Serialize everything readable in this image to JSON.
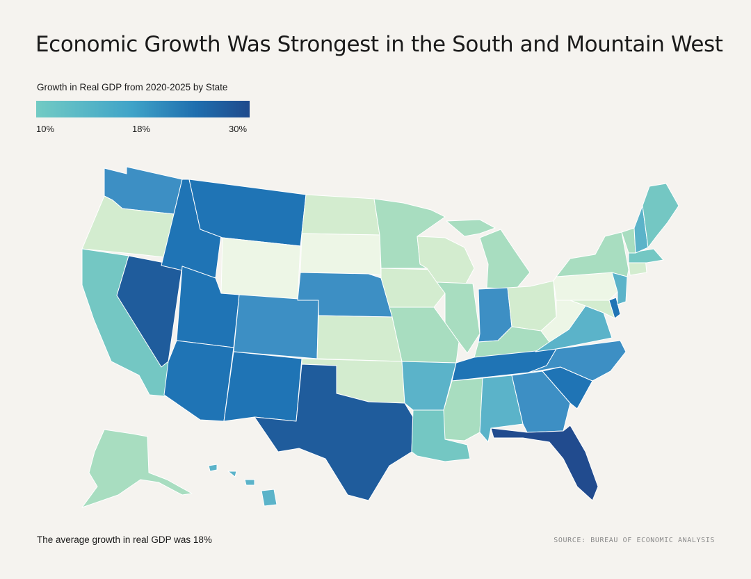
{
  "title": "Economic Growth Was Strongest in the South and Mountain West",
  "legend": {
    "title": "Growth in Real GDP from 2020-2025 by State",
    "ticks": [
      "10%",
      "18%",
      "30%"
    ],
    "colors": [
      "#72cbc4",
      "#3fa3c8",
      "#1f6eae",
      "#1f4a8c"
    ]
  },
  "footnote": "The average growth in real GDP was 18%",
  "source": "SOURCE: BUREAU OF ECONOMIC ANALYSIS",
  "palette": {
    "darkest": "#214b8e",
    "dark": "#1f5c9c",
    "blue": "#1f74b5",
    "mid": "#3d8fc4",
    "light_blue": "#5bb3c9",
    "teal": "#74c7c3",
    "mint": "#a8ddc0",
    "pale": "#d3eccf",
    "palest": "#edf6e6"
  },
  "states": [
    {
      "name": "Washington",
      "band": "mid"
    },
    {
      "name": "Oregon",
      "band": "pale"
    },
    {
      "name": "California",
      "band": "teal"
    },
    {
      "name": "Nevada",
      "band": "dark"
    },
    {
      "name": "Idaho",
      "band": "blue"
    },
    {
      "name": "Montana",
      "band": "blue"
    },
    {
      "name": "Wyoming",
      "band": "palest"
    },
    {
      "name": "Utah",
      "band": "blue"
    },
    {
      "name": "Arizona",
      "band": "blue"
    },
    {
      "name": "Colorado",
      "band": "mid"
    },
    {
      "name": "New Mexico",
      "band": "blue"
    },
    {
      "name": "North Dakota",
      "band": "pale"
    },
    {
      "name": "South Dakota",
      "band": "palest"
    },
    {
      "name": "Nebraska",
      "band": "mid"
    },
    {
      "name": "Kansas",
      "band": "pale"
    },
    {
      "name": "Oklahoma",
      "band": "pale"
    },
    {
      "name": "Texas",
      "band": "dark"
    },
    {
      "name": "Minnesota",
      "band": "mint"
    },
    {
      "name": "Iowa",
      "band": "pale"
    },
    {
      "name": "Missouri",
      "band": "mint"
    },
    {
      "name": "Arkansas",
      "band": "light_blue"
    },
    {
      "name": "Louisiana",
      "band": "teal"
    },
    {
      "name": "Wisconsin",
      "band": "pale"
    },
    {
      "name": "Illinois",
      "band": "mint"
    },
    {
      "name": "Michigan",
      "band": "mint"
    },
    {
      "name": "Indiana",
      "band": "mid"
    },
    {
      "name": "Ohio",
      "band": "pale"
    },
    {
      "name": "Kentucky",
      "band": "mint"
    },
    {
      "name": "Tennessee",
      "band": "blue"
    },
    {
      "name": "Mississippi",
      "band": "mint"
    },
    {
      "name": "Alabama",
      "band": "light_blue"
    },
    {
      "name": "Georgia",
      "band": "mid"
    },
    {
      "name": "Florida",
      "band": "darkest"
    },
    {
      "name": "South Carolina",
      "band": "blue"
    },
    {
      "name": "North Carolina",
      "band": "mid"
    },
    {
      "name": "Virginia",
      "band": "light_blue"
    },
    {
      "name": "West Virginia",
      "band": "palest"
    },
    {
      "name": "Pennsylvania",
      "band": "palest"
    },
    {
      "name": "New York",
      "band": "mint"
    },
    {
      "name": "Vermont",
      "band": "mint"
    },
    {
      "name": "New Hampshire",
      "band": "light_blue"
    },
    {
      "name": "Maine",
      "band": "teal"
    },
    {
      "name": "Massachusetts",
      "band": "teal"
    },
    {
      "name": "Connecticut",
      "band": "pale"
    },
    {
      "name": "New Jersey",
      "band": "light_blue"
    },
    {
      "name": "Delaware",
      "band": "blue"
    },
    {
      "name": "Maryland",
      "band": "pale"
    },
    {
      "name": "Alaska",
      "band": "mint"
    },
    {
      "name": "Hawaii",
      "band": "light_blue"
    }
  ]
}
